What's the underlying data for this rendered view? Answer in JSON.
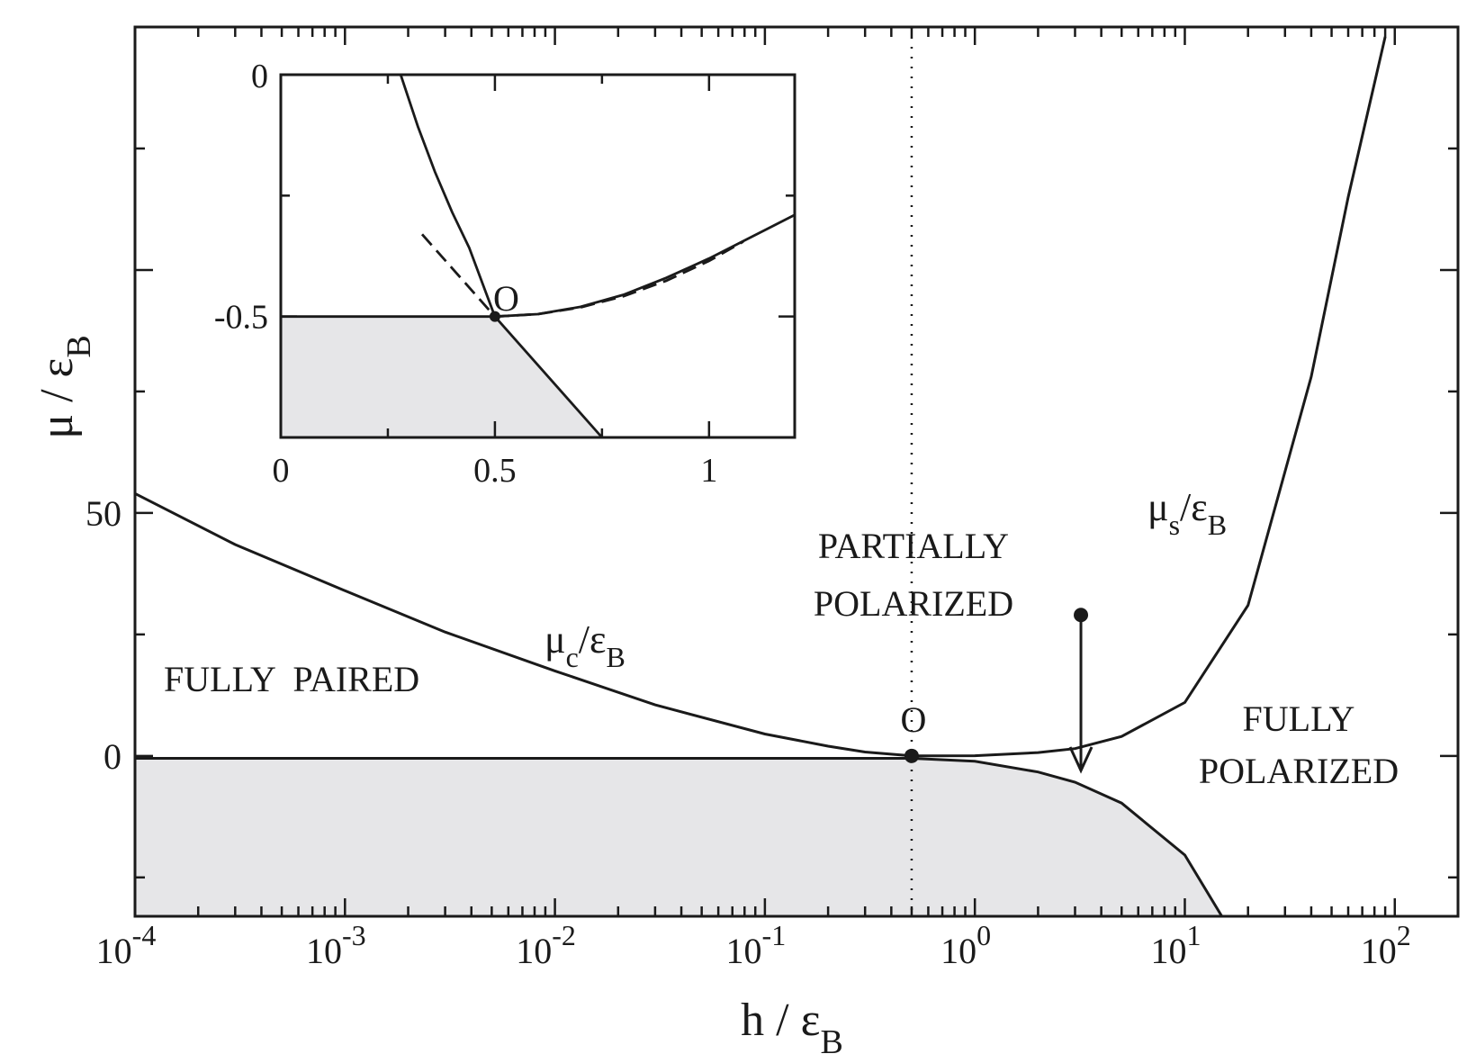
{
  "chart_data": {
    "type": "line",
    "main": {
      "x_scale": "log",
      "xlim": [
        0.0001,
        200
      ],
      "ylim": [
        -33,
        150
      ],
      "x_ticks": [
        0.0001,
        0.001,
        0.01,
        0.1,
        1,
        10,
        100
      ],
      "x_tick_labels": [
        {
          "base": "10",
          "exp": "-4"
        },
        {
          "base": "10",
          "exp": "-3"
        },
        {
          "base": "10",
          "exp": "-2"
        },
        {
          "base": "10",
          "exp": "-1"
        },
        {
          "base": "10",
          "exp": "0"
        },
        {
          "base": "10",
          "exp": "1"
        },
        {
          "base": "10",
          "exp": "2"
        }
      ],
      "y_ticks": [
        0,
        50
      ],
      "y_tick_labels": [
        "0",
        "50"
      ],
      "xlabel": {
        "text": "h / ε",
        "sub": "B"
      },
      "ylabel": {
        "text": "μ / ε",
        "sub": "B"
      },
      "series": [
        {
          "label": {
            "text": "μ",
            "sub": "c",
            "rest": "/ε",
            "sub2": "B"
          },
          "x": [
            0.0001,
            0.0003,
            0.001,
            0.003,
            0.01,
            0.03,
            0.1,
            0.2,
            0.3,
            0.5
          ],
          "y": [
            54.0,
            43.5,
            34.0,
            25.5,
            17.5,
            10.5,
            4.5,
            2.0,
            0.8,
            0
          ]
        },
        {
          "label": {
            "text": "μ",
            "sub": "s",
            "rest": "/ε",
            "sub2": "B"
          },
          "x": [
            0.5,
            1,
            2,
            3,
            5,
            10,
            20,
            40,
            60,
            90
          ],
          "y": [
            0,
            0.05,
            0.7,
            1.5,
            4.0,
            11.0,
            31.0,
            78.0,
            115.0,
            148.0
          ]
        },
        {
          "x": [
            0.0001,
            0.01,
            0.1,
            0.5,
            1,
            2,
            3,
            5,
            10,
            15
          ],
          "y": [
            -0.5,
            -0.5,
            -0.5,
            -0.5,
            -1.1,
            -3.3,
            -5.4,
            -9.7,
            -20.4,
            -33.0
          ]
        },
        {
          "x": [
            0.5,
            0.5
          ],
          "y": [
            -33,
            150
          ],
          "style": "dotted"
        }
      ],
      "filled_region": {
        "bounded_by": "lower curve",
        "color": "#e6e6e8"
      },
      "arrow": {
        "x": 3.2,
        "y_from": 29.0,
        "y_to": -3.0
      },
      "point_O": {
        "x": 0.5,
        "y": 0,
        "label": "O"
      },
      "regions": [
        {
          "lines": [
            "FULLY  PAIRED"
          ]
        },
        {
          "lines": [
            "PARTIALLY",
            "POLARIZED"
          ]
        },
        {
          "lines": [
            "FULLY",
            "POLARIZED"
          ]
        }
      ]
    },
    "inset": {
      "x_scale": "linear",
      "xlim": [
        0,
        1.2
      ],
      "ylim": [
        -0.75,
        0
      ],
      "x_ticks": [
        0,
        0.5,
        1
      ],
      "x_tick_labels": [
        "0",
        "0.5",
        "1"
      ],
      "y_ticks": [
        0,
        -0.5
      ],
      "y_tick_labels": [
        "0",
        "-0.5"
      ],
      "point_O": {
        "x": 0.5,
        "y": -0.5,
        "label": "O"
      },
      "series": [
        {
          "x": [
            0.28,
            0.32,
            0.36,
            0.4,
            0.44,
            0.48,
            0.5
          ],
          "y": [
            0.0,
            -0.107,
            -0.201,
            -0.284,
            -0.358,
            -0.453,
            -0.5
          ]
        },
        {
          "x": [
            0.5,
            0.6,
            0.7,
            0.8,
            0.9,
            1.0,
            1.1,
            1.2
          ],
          "y": [
            -0.5,
            -0.495,
            -0.48,
            -0.455,
            -0.42,
            -0.38,
            -0.335,
            -0.29
          ]
        },
        {
          "x": [
            0.33,
            0.4,
            0.45,
            0.5
          ],
          "y": [
            -0.33,
            -0.4,
            -0.45,
            -0.5
          ],
          "style": "dashed"
        },
        {
          "x": [
            0.5,
            0.6,
            0.7,
            0.8,
            0.9,
            1.0,
            1.08
          ],
          "y": [
            -0.5,
            -0.495,
            -0.481,
            -0.458,
            -0.426,
            -0.385,
            -0.345
          ],
          "style": "dashed"
        },
        {
          "x": [
            0,
            0.5
          ],
          "y": [
            -0.5,
            -0.5
          ]
        },
        {
          "x": [
            0.5,
            0.75
          ],
          "y": [
            -0.5,
            -0.75
          ]
        }
      ],
      "filled_region": {
        "color": "#e6e6e8"
      }
    }
  }
}
